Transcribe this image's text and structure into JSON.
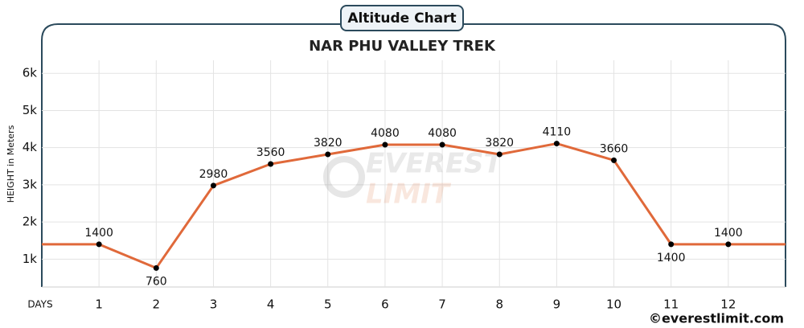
{
  "chart_data": {
    "type": "line",
    "badge": "Altitude Chart",
    "title": "NAR PHU VALLEY TREK",
    "x_label": "DAYS",
    "y_label": "HEIGHT in Meters",
    "x": [
      1,
      2,
      3,
      4,
      5,
      6,
      7,
      8,
      9,
      10,
      11,
      12
    ],
    "xlim": [
      0,
      13
    ],
    "xticks": [
      1,
      2,
      3,
      4,
      5,
      6,
      7,
      8,
      9,
      10,
      11,
      12
    ],
    "ylim": [
      250,
      7000
    ],
    "yticks": [
      {
        "value": 1000,
        "label": "1k"
      },
      {
        "value": 2000,
        "label": "2k"
      },
      {
        "value": 3000,
        "label": "3k"
      },
      {
        "value": 4000,
        "label": "4k"
      },
      {
        "value": 5000,
        "label": "5k"
      },
      {
        "value": 6000,
        "label": "6k"
      }
    ],
    "grid": true,
    "series": [
      {
        "color": "#e0693a",
        "values": [
          1400,
          760,
          2980,
          3560,
          3820,
          4080,
          4080,
          3820,
          4110,
          3660,
          1400,
          1400
        ]
      }
    ]
  },
  "watermark": [
    "EVEREST",
    "LIMIT"
  ],
  "footer": "©everestlimit.com"
}
